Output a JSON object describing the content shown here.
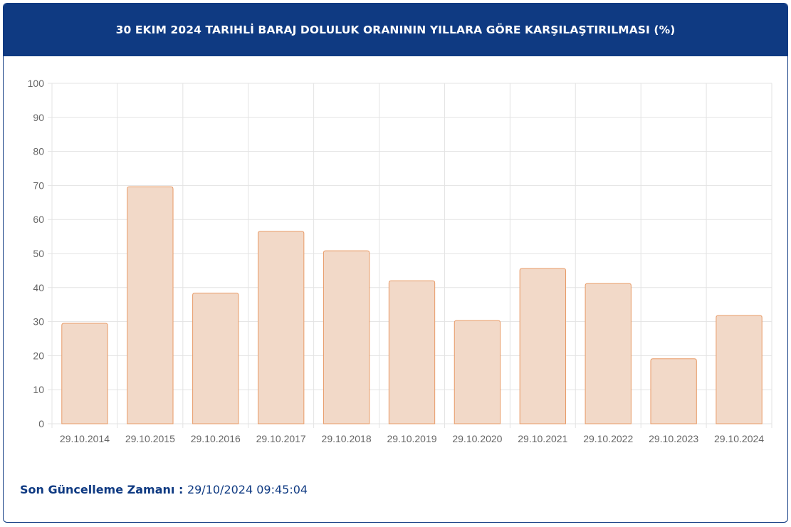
{
  "header": {
    "title": "30 EKIM 2024 TARIHLİ BARAJ DOLULUK ORANININ YILLARA GÖRE KARŞILAŞTIRILMASI (%)"
  },
  "footer": {
    "label": "Son Güncelleme Zamanı",
    "separator": " : ",
    "value": "29/10/2024 09:45:04"
  },
  "colors": {
    "header_bg": "#0f3a82",
    "bar_fill": "#f2d9c8",
    "bar_stroke": "#e89a66",
    "grid": "#e3e3e3",
    "tick_text": "#666666"
  },
  "chart_data": {
    "type": "bar",
    "categories": [
      "29.10.2014",
      "29.10.2015",
      "29.10.2016",
      "29.10.2017",
      "29.10.2018",
      "29.10.2019",
      "29.10.2020",
      "29.10.2021",
      "29.10.2022",
      "29.10.2023",
      "29.10.2024"
    ],
    "values": [
      29.5,
      69.6,
      38.4,
      56.5,
      50.8,
      42.0,
      30.3,
      45.6,
      41.2,
      19.1,
      31.8
    ],
    "ylim": [
      0,
      100
    ],
    "yticks": [
      0,
      10,
      20,
      30,
      40,
      50,
      60,
      70,
      80,
      90,
      100
    ],
    "grid": true,
    "legend": "none"
  }
}
